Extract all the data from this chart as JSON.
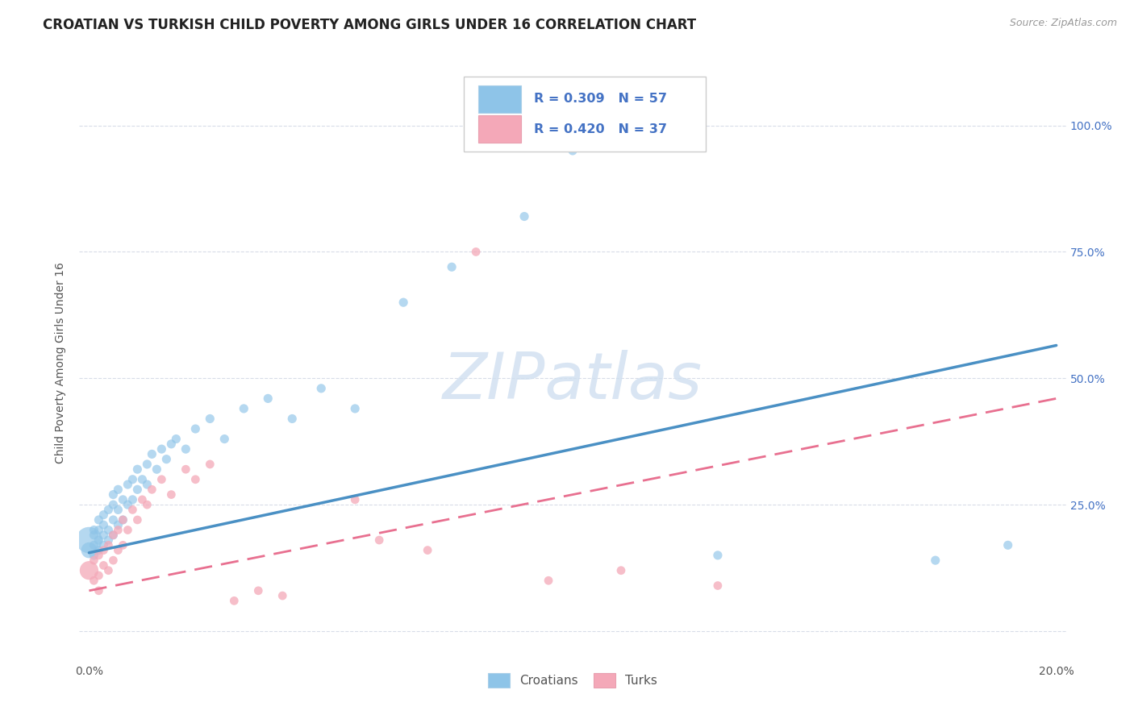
{
  "title": "CROATIAN VS TURKISH CHILD POVERTY AMONG GIRLS UNDER 16 CORRELATION CHART",
  "source": "Source: ZipAtlas.com",
  "ylabel": "Child Poverty Among Girls Under 16",
  "croatian_R": 0.309,
  "croatian_N": 57,
  "turkish_R": 0.42,
  "turkish_N": 37,
  "croatian_color": "#8ec4e8",
  "turkish_color": "#f4a8b8",
  "croatian_line_color": "#4a90c4",
  "turkish_line_color": "#e87090",
  "watermark": "ZIPatlas",
  "watermark_color": "#d0dff0",
  "legend_label_croatian": "Croatians",
  "legend_label_turkish": "Turks",
  "grid_color": "#d8dce8",
  "background_color": "#ffffff",
  "title_fontsize": 12,
  "axis_label_fontsize": 10,
  "tick_fontsize": 10,
  "source_fontsize": 9,
  "xlim": [
    -0.002,
    0.202
  ],
  "ylim": [
    -0.06,
    1.12
  ],
  "croatian_x": [
    0.0,
    0.0,
    0.001,
    0.001,
    0.001,
    0.001,
    0.002,
    0.002,
    0.002,
    0.002,
    0.003,
    0.003,
    0.003,
    0.003,
    0.004,
    0.004,
    0.004,
    0.005,
    0.005,
    0.005,
    0.005,
    0.006,
    0.006,
    0.006,
    0.007,
    0.007,
    0.008,
    0.008,
    0.009,
    0.009,
    0.01,
    0.01,
    0.011,
    0.012,
    0.012,
    0.013,
    0.014,
    0.015,
    0.016,
    0.017,
    0.018,
    0.02,
    0.022,
    0.025,
    0.028,
    0.032,
    0.037,
    0.042,
    0.048,
    0.055,
    0.065,
    0.075,
    0.09,
    0.1,
    0.13,
    0.175,
    0.19
  ],
  "croatian_y": [
    0.18,
    0.16,
    0.15,
    0.17,
    0.19,
    0.2,
    0.16,
    0.18,
    0.2,
    0.22,
    0.17,
    0.19,
    0.21,
    0.23,
    0.18,
    0.2,
    0.24,
    0.19,
    0.22,
    0.25,
    0.27,
    0.21,
    0.24,
    0.28,
    0.22,
    0.26,
    0.25,
    0.29,
    0.26,
    0.3,
    0.28,
    0.32,
    0.3,
    0.29,
    0.33,
    0.35,
    0.32,
    0.36,
    0.34,
    0.37,
    0.38,
    0.36,
    0.4,
    0.42,
    0.38,
    0.44,
    0.46,
    0.42,
    0.48,
    0.44,
    0.65,
    0.72,
    0.82,
    0.95,
    0.15,
    0.14,
    0.17
  ],
  "turkish_x": [
    0.0,
    0.001,
    0.001,
    0.002,
    0.002,
    0.002,
    0.003,
    0.003,
    0.004,
    0.004,
    0.005,
    0.005,
    0.006,
    0.006,
    0.007,
    0.007,
    0.008,
    0.009,
    0.01,
    0.011,
    0.012,
    0.013,
    0.015,
    0.017,
    0.02,
    0.022,
    0.025,
    0.03,
    0.035,
    0.04,
    0.055,
    0.06,
    0.07,
    0.08,
    0.095,
    0.11,
    0.13
  ],
  "turkish_y": [
    0.12,
    0.1,
    0.14,
    0.11,
    0.15,
    0.08,
    0.13,
    0.16,
    0.12,
    0.17,
    0.14,
    0.19,
    0.16,
    0.2,
    0.17,
    0.22,
    0.2,
    0.24,
    0.22,
    0.26,
    0.25,
    0.28,
    0.3,
    0.27,
    0.32,
    0.3,
    0.33,
    0.06,
    0.08,
    0.07,
    0.26,
    0.18,
    0.16,
    0.75,
    0.1,
    0.12,
    0.09
  ],
  "cr_line_x0": 0.0,
  "cr_line_x1": 0.2,
  "cr_line_y0": 0.155,
  "cr_line_y1": 0.565,
  "tk_line_x0": 0.0,
  "tk_line_x1": 0.2,
  "tk_line_y0": 0.08,
  "tk_line_y1": 0.46
}
